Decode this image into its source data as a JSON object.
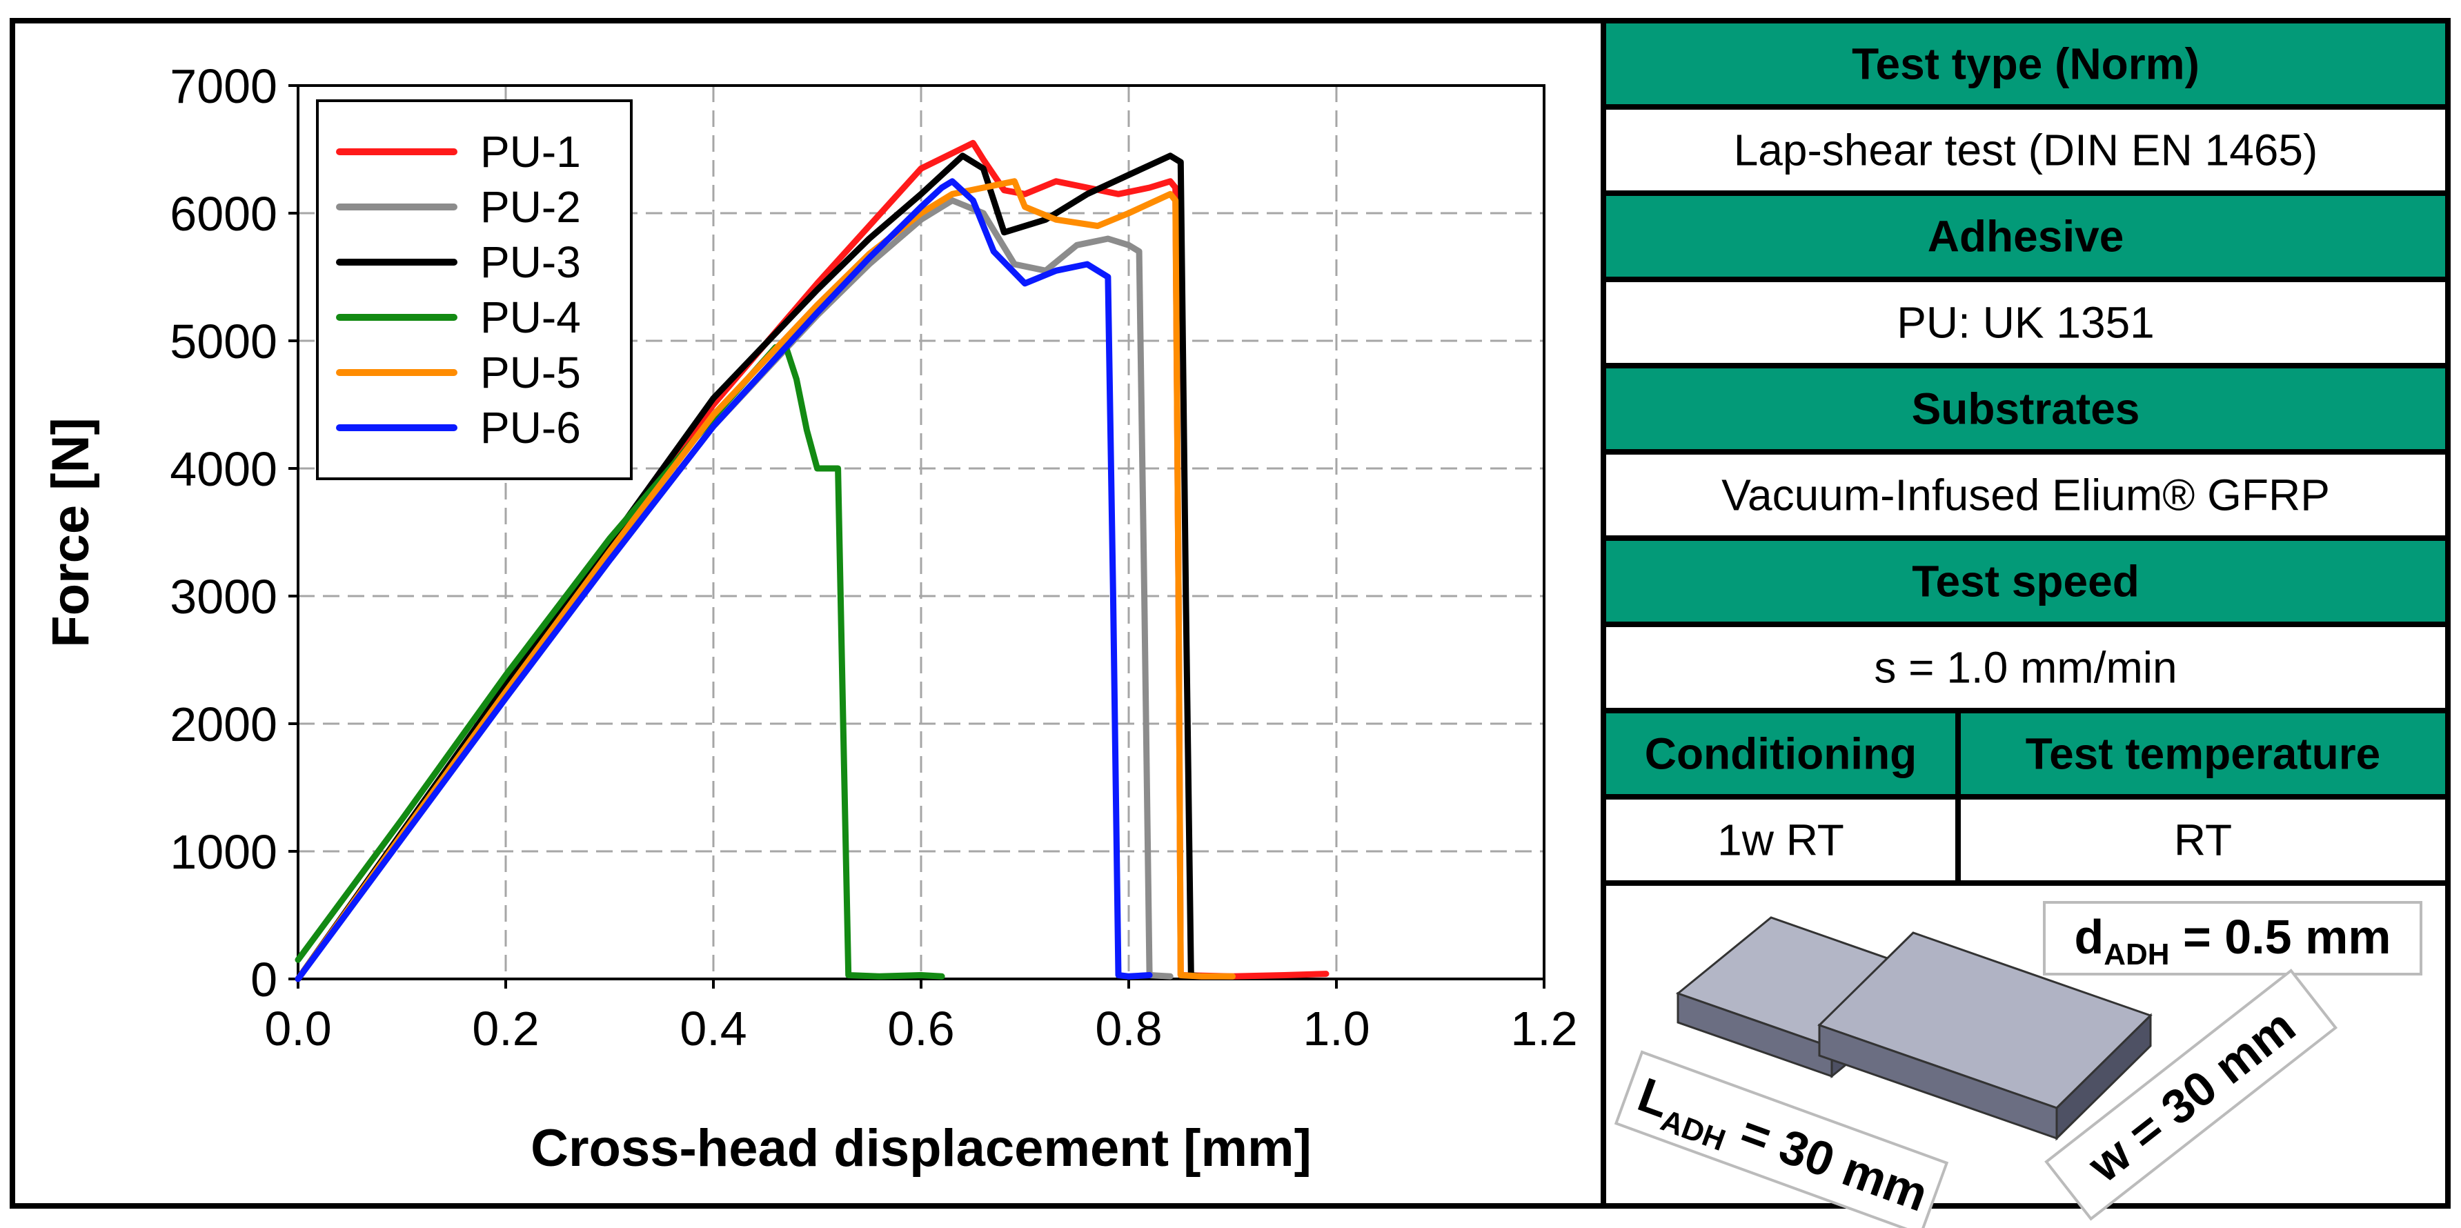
{
  "chart_data": {
    "type": "line",
    "xlabel": "Cross-head displacement [mm]",
    "ylabel": "Force [N]",
    "xlim": [
      0,
      1.2
    ],
    "ylim": [
      0,
      7000
    ],
    "xticks": [
      "0.0",
      "0.2",
      "0.4",
      "0.6",
      "0.8",
      "1.0",
      "1.2"
    ],
    "yticks": [
      "0",
      "1000",
      "2000",
      "3000",
      "4000",
      "5000",
      "6000",
      "7000"
    ],
    "grid": true,
    "legend_position": "top-left",
    "series": [
      {
        "name": "PU-1",
        "color": "#ff1a1a",
        "points": [
          [
            0,
            0
          ],
          [
            0.1,
            1150
          ],
          [
            0.2,
            2280
          ],
          [
            0.3,
            3400
          ],
          [
            0.4,
            4500
          ],
          [
            0.5,
            5450
          ],
          [
            0.55,
            5900
          ],
          [
            0.6,
            6350
          ],
          [
            0.65,
            6550
          ],
          [
            0.66,
            6420
          ],
          [
            0.68,
            6180
          ],
          [
            0.7,
            6150
          ],
          [
            0.73,
            6250
          ],
          [
            0.76,
            6200
          ],
          [
            0.79,
            6150
          ],
          [
            0.82,
            6200
          ],
          [
            0.84,
            6250
          ],
          [
            0.845,
            6200
          ],
          [
            0.848,
            3000
          ],
          [
            0.85,
            30
          ],
          [
            0.9,
            20
          ],
          [
            0.95,
            30
          ],
          [
            0.99,
            40
          ]
        ]
      },
      {
        "name": "PU-2",
        "color": "#8c8c8c",
        "points": [
          [
            0,
            0
          ],
          [
            0.1,
            1100
          ],
          [
            0.2,
            2200
          ],
          [
            0.3,
            3280
          ],
          [
            0.4,
            4330
          ],
          [
            0.5,
            5200
          ],
          [
            0.55,
            5600
          ],
          [
            0.6,
            5950
          ],
          [
            0.63,
            6100
          ],
          [
            0.66,
            6000
          ],
          [
            0.69,
            5600
          ],
          [
            0.72,
            5550
          ],
          [
            0.75,
            5750
          ],
          [
            0.78,
            5800
          ],
          [
            0.8,
            5750
          ],
          [
            0.81,
            5700
          ],
          [
            0.815,
            3000
          ],
          [
            0.82,
            30
          ],
          [
            0.84,
            20
          ]
        ]
      },
      {
        "name": "PU-3",
        "color": "#000000",
        "points": [
          [
            0,
            0
          ],
          [
            0.1,
            1150
          ],
          [
            0.2,
            2300
          ],
          [
            0.3,
            3420
          ],
          [
            0.4,
            4550
          ],
          [
            0.5,
            5400
          ],
          [
            0.55,
            5800
          ],
          [
            0.6,
            6150
          ],
          [
            0.64,
            6450
          ],
          [
            0.66,
            6350
          ],
          [
            0.68,
            5850
          ],
          [
            0.72,
            5950
          ],
          [
            0.76,
            6150
          ],
          [
            0.8,
            6300
          ],
          [
            0.84,
            6450
          ],
          [
            0.85,
            6400
          ],
          [
            0.855,
            3000
          ],
          [
            0.86,
            30
          ],
          [
            0.87,
            20
          ]
        ]
      },
      {
        "name": "PU-4",
        "color": "#138a13",
        "points": [
          [
            0,
            150
          ],
          [
            0.1,
            1250
          ],
          [
            0.2,
            2380
          ],
          [
            0.3,
            3450
          ],
          [
            0.4,
            4400
          ],
          [
            0.46,
            4950
          ],
          [
            0.47,
            4950
          ],
          [
            0.48,
            4700
          ],
          [
            0.49,
            4300
          ],
          [
            0.5,
            4000
          ],
          [
            0.52,
            4000
          ],
          [
            0.525,
            2000
          ],
          [
            0.53,
            30
          ],
          [
            0.56,
            20
          ],
          [
            0.6,
            30
          ],
          [
            0.62,
            20
          ]
        ]
      },
      {
        "name": "PU-5",
        "color": "#ff8c00",
        "points": [
          [
            0,
            0
          ],
          [
            0.1,
            1130
          ],
          [
            0.2,
            2250
          ],
          [
            0.3,
            3350
          ],
          [
            0.4,
            4420
          ],
          [
            0.5,
            5280
          ],
          [
            0.55,
            5680
          ],
          [
            0.6,
            6000
          ],
          [
            0.63,
            6150
          ],
          [
            0.66,
            6200
          ],
          [
            0.69,
            6250
          ],
          [
            0.7,
            6050
          ],
          [
            0.73,
            5950
          ],
          [
            0.77,
            5900
          ],
          [
            0.8,
            6000
          ],
          [
            0.84,
            6150
          ],
          [
            0.845,
            6100
          ],
          [
            0.848,
            3000
          ],
          [
            0.85,
            30
          ],
          [
            0.87,
            20
          ],
          [
            0.9,
            20
          ]
        ]
      },
      {
        "name": "PU-6",
        "color": "#0a1aff",
        "points": [
          [
            0,
            0
          ],
          [
            0.1,
            1100
          ],
          [
            0.2,
            2200
          ],
          [
            0.3,
            3280
          ],
          [
            0.4,
            4330
          ],
          [
            0.5,
            5220
          ],
          [
            0.55,
            5650
          ],
          [
            0.6,
            6050
          ],
          [
            0.62,
            6200
          ],
          [
            0.63,
            6250
          ],
          [
            0.65,
            6100
          ],
          [
            0.67,
            5700
          ],
          [
            0.7,
            5450
          ],
          [
            0.73,
            5550
          ],
          [
            0.76,
            5600
          ],
          [
            0.78,
            5500
          ],
          [
            0.785,
            3000
          ],
          [
            0.79,
            30
          ],
          [
            0.8,
            20
          ],
          [
            0.82,
            30
          ]
        ]
      }
    ]
  },
  "info_table": {
    "rows": [
      {
        "type": "header",
        "text": "Test type (Norm)"
      },
      {
        "type": "value",
        "text": "Lap-shear test (DIN EN 1465)"
      },
      {
        "type": "header",
        "text": "Adhesive"
      },
      {
        "type": "value",
        "text": "PU: UK 1351"
      },
      {
        "type": "header",
        "text": "Substrates"
      },
      {
        "type": "value",
        "text": "Vacuum-Infused Elium® GFRP"
      },
      {
        "type": "header",
        "text": "Test speed"
      },
      {
        "type": "value",
        "text": "s = 1.0 mm/min"
      }
    ],
    "split_headers": [
      "Conditioning",
      "Test temperature"
    ],
    "split_values": [
      "1w RT",
      "RT"
    ],
    "header_color": "#039a78"
  },
  "specimen": {
    "thickness_label": "d",
    "thickness_sub": "ADH",
    "thickness_value": " = 0.5 mm",
    "length_label": "L",
    "length_sub": "ADH",
    "length_value": " = 30 mm",
    "width_label": "w = 30 mm"
  }
}
